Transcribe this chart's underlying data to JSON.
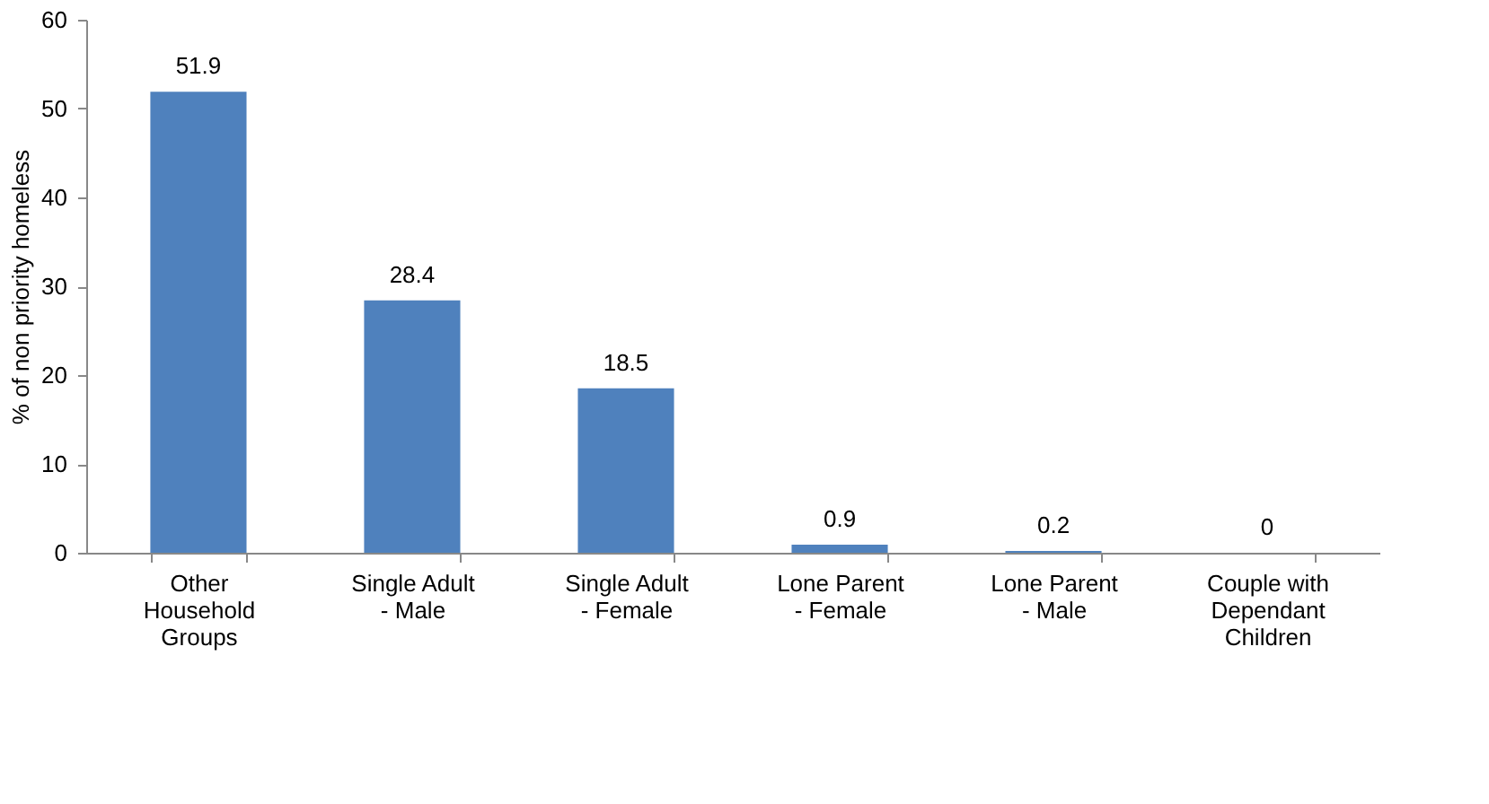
{
  "chart_data": {
    "type": "bar",
    "ylabel": "% of non priority homeless",
    "categories": [
      "Other Household Groups",
      "Single Adult - Male",
      "Single Adult - Female",
      "Lone Parent - Female",
      "Lone Parent - Male",
      "Couple with Dependant Children"
    ],
    "values": [
      51.9,
      28.4,
      18.5,
      0.9,
      0.2,
      0
    ],
    "color": "#4f81bd",
    "ylim": [
      0,
      60
    ],
    "yticks": [
      0,
      10,
      20,
      30,
      40,
      50,
      60
    ],
    "grid": false,
    "data_labels": true
  }
}
